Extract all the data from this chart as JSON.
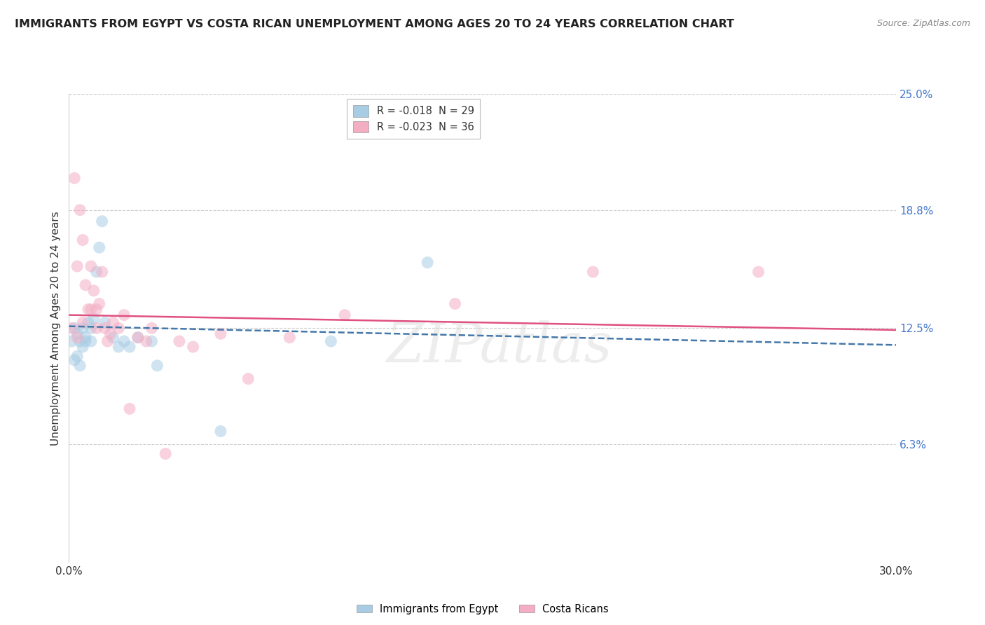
{
  "title": "IMMIGRANTS FROM EGYPT VS COSTA RICAN UNEMPLOYMENT AMONG AGES 20 TO 24 YEARS CORRELATION CHART",
  "source": "Source: ZipAtlas.com",
  "ylabel": "Unemployment Among Ages 20 to 24 years",
  "xlim": [
    0.0,
    0.3
  ],
  "ylim": [
    0.0,
    0.25
  ],
  "yticks": [
    0.063,
    0.125,
    0.188,
    0.25
  ],
  "ytick_labels": [
    "6.3%",
    "12.5%",
    "18.8%",
    "25.0%"
  ],
  "xtick_labels": [
    "0.0%",
    "30.0%"
  ],
  "xticks": [
    0.0,
    0.3
  ],
  "legend_entries": [
    {
      "label": "R = -0.018  N = 29",
      "color": "#a8cce4"
    },
    {
      "label": "R = -0.023  N = 36",
      "color": "#f4aec4"
    }
  ],
  "bottom_legend": [
    {
      "label": "Immigrants from Egypt",
      "color": "#a8cce4"
    },
    {
      "label": "Costa Ricans",
      "color": "#f4aec4"
    }
  ],
  "watermark": "ZIPatlas",
  "blue_scatter_x": [
    0.001,
    0.002,
    0.002,
    0.003,
    0.003,
    0.004,
    0.004,
    0.005,
    0.005,
    0.006,
    0.006,
    0.007,
    0.008,
    0.008,
    0.009,
    0.01,
    0.011,
    0.012,
    0.013,
    0.016,
    0.018,
    0.02,
    0.022,
    0.025,
    0.03,
    0.032,
    0.055,
    0.095,
    0.13
  ],
  "blue_scatter_y": [
    0.118,
    0.125,
    0.108,
    0.122,
    0.11,
    0.118,
    0.105,
    0.125,
    0.115,
    0.12,
    0.118,
    0.128,
    0.125,
    0.118,
    0.13,
    0.155,
    0.168,
    0.182,
    0.128,
    0.12,
    0.115,
    0.118,
    0.115,
    0.12,
    0.118,
    0.105,
    0.07,
    0.118,
    0.16
  ],
  "pink_scatter_x": [
    0.001,
    0.002,
    0.003,
    0.003,
    0.004,
    0.005,
    0.005,
    0.006,
    0.007,
    0.008,
    0.008,
    0.009,
    0.01,
    0.01,
    0.011,
    0.012,
    0.013,
    0.014,
    0.015,
    0.016,
    0.018,
    0.02,
    0.022,
    0.025,
    0.028,
    0.03,
    0.035,
    0.04,
    0.045,
    0.055,
    0.065,
    0.08,
    0.1,
    0.14,
    0.19,
    0.25
  ],
  "pink_scatter_y": [
    0.125,
    0.205,
    0.158,
    0.12,
    0.188,
    0.172,
    0.128,
    0.148,
    0.135,
    0.158,
    0.135,
    0.145,
    0.135,
    0.125,
    0.138,
    0.155,
    0.125,
    0.118,
    0.122,
    0.128,
    0.125,
    0.132,
    0.082,
    0.12,
    0.118,
    0.125,
    0.058,
    0.118,
    0.115,
    0.122,
    0.098,
    0.12,
    0.132,
    0.138,
    0.155,
    0.155
  ],
  "blue_line_x": [
    0.0,
    0.3
  ],
  "blue_line_y_start": 0.126,
  "blue_line_y_end": 0.116,
  "pink_line_x": [
    0.0,
    0.3
  ],
  "pink_line_y_start": 0.132,
  "pink_line_y_end": 0.124,
  "blue_color": "#a8cce4",
  "pink_color": "#f4aec4",
  "blue_line_color": "#4477aa",
  "pink_line_color": "#e05080",
  "background_color": "#ffffff",
  "grid_color": "#cccccc",
  "title_color": "#222222",
  "source_color": "#888888",
  "tick_color": "#4477cc",
  "title_fontsize": 11.5,
  "axis_label_fontsize": 11,
  "tick_fontsize": 11,
  "scatter_size": 150,
  "scatter_alpha": 0.55
}
